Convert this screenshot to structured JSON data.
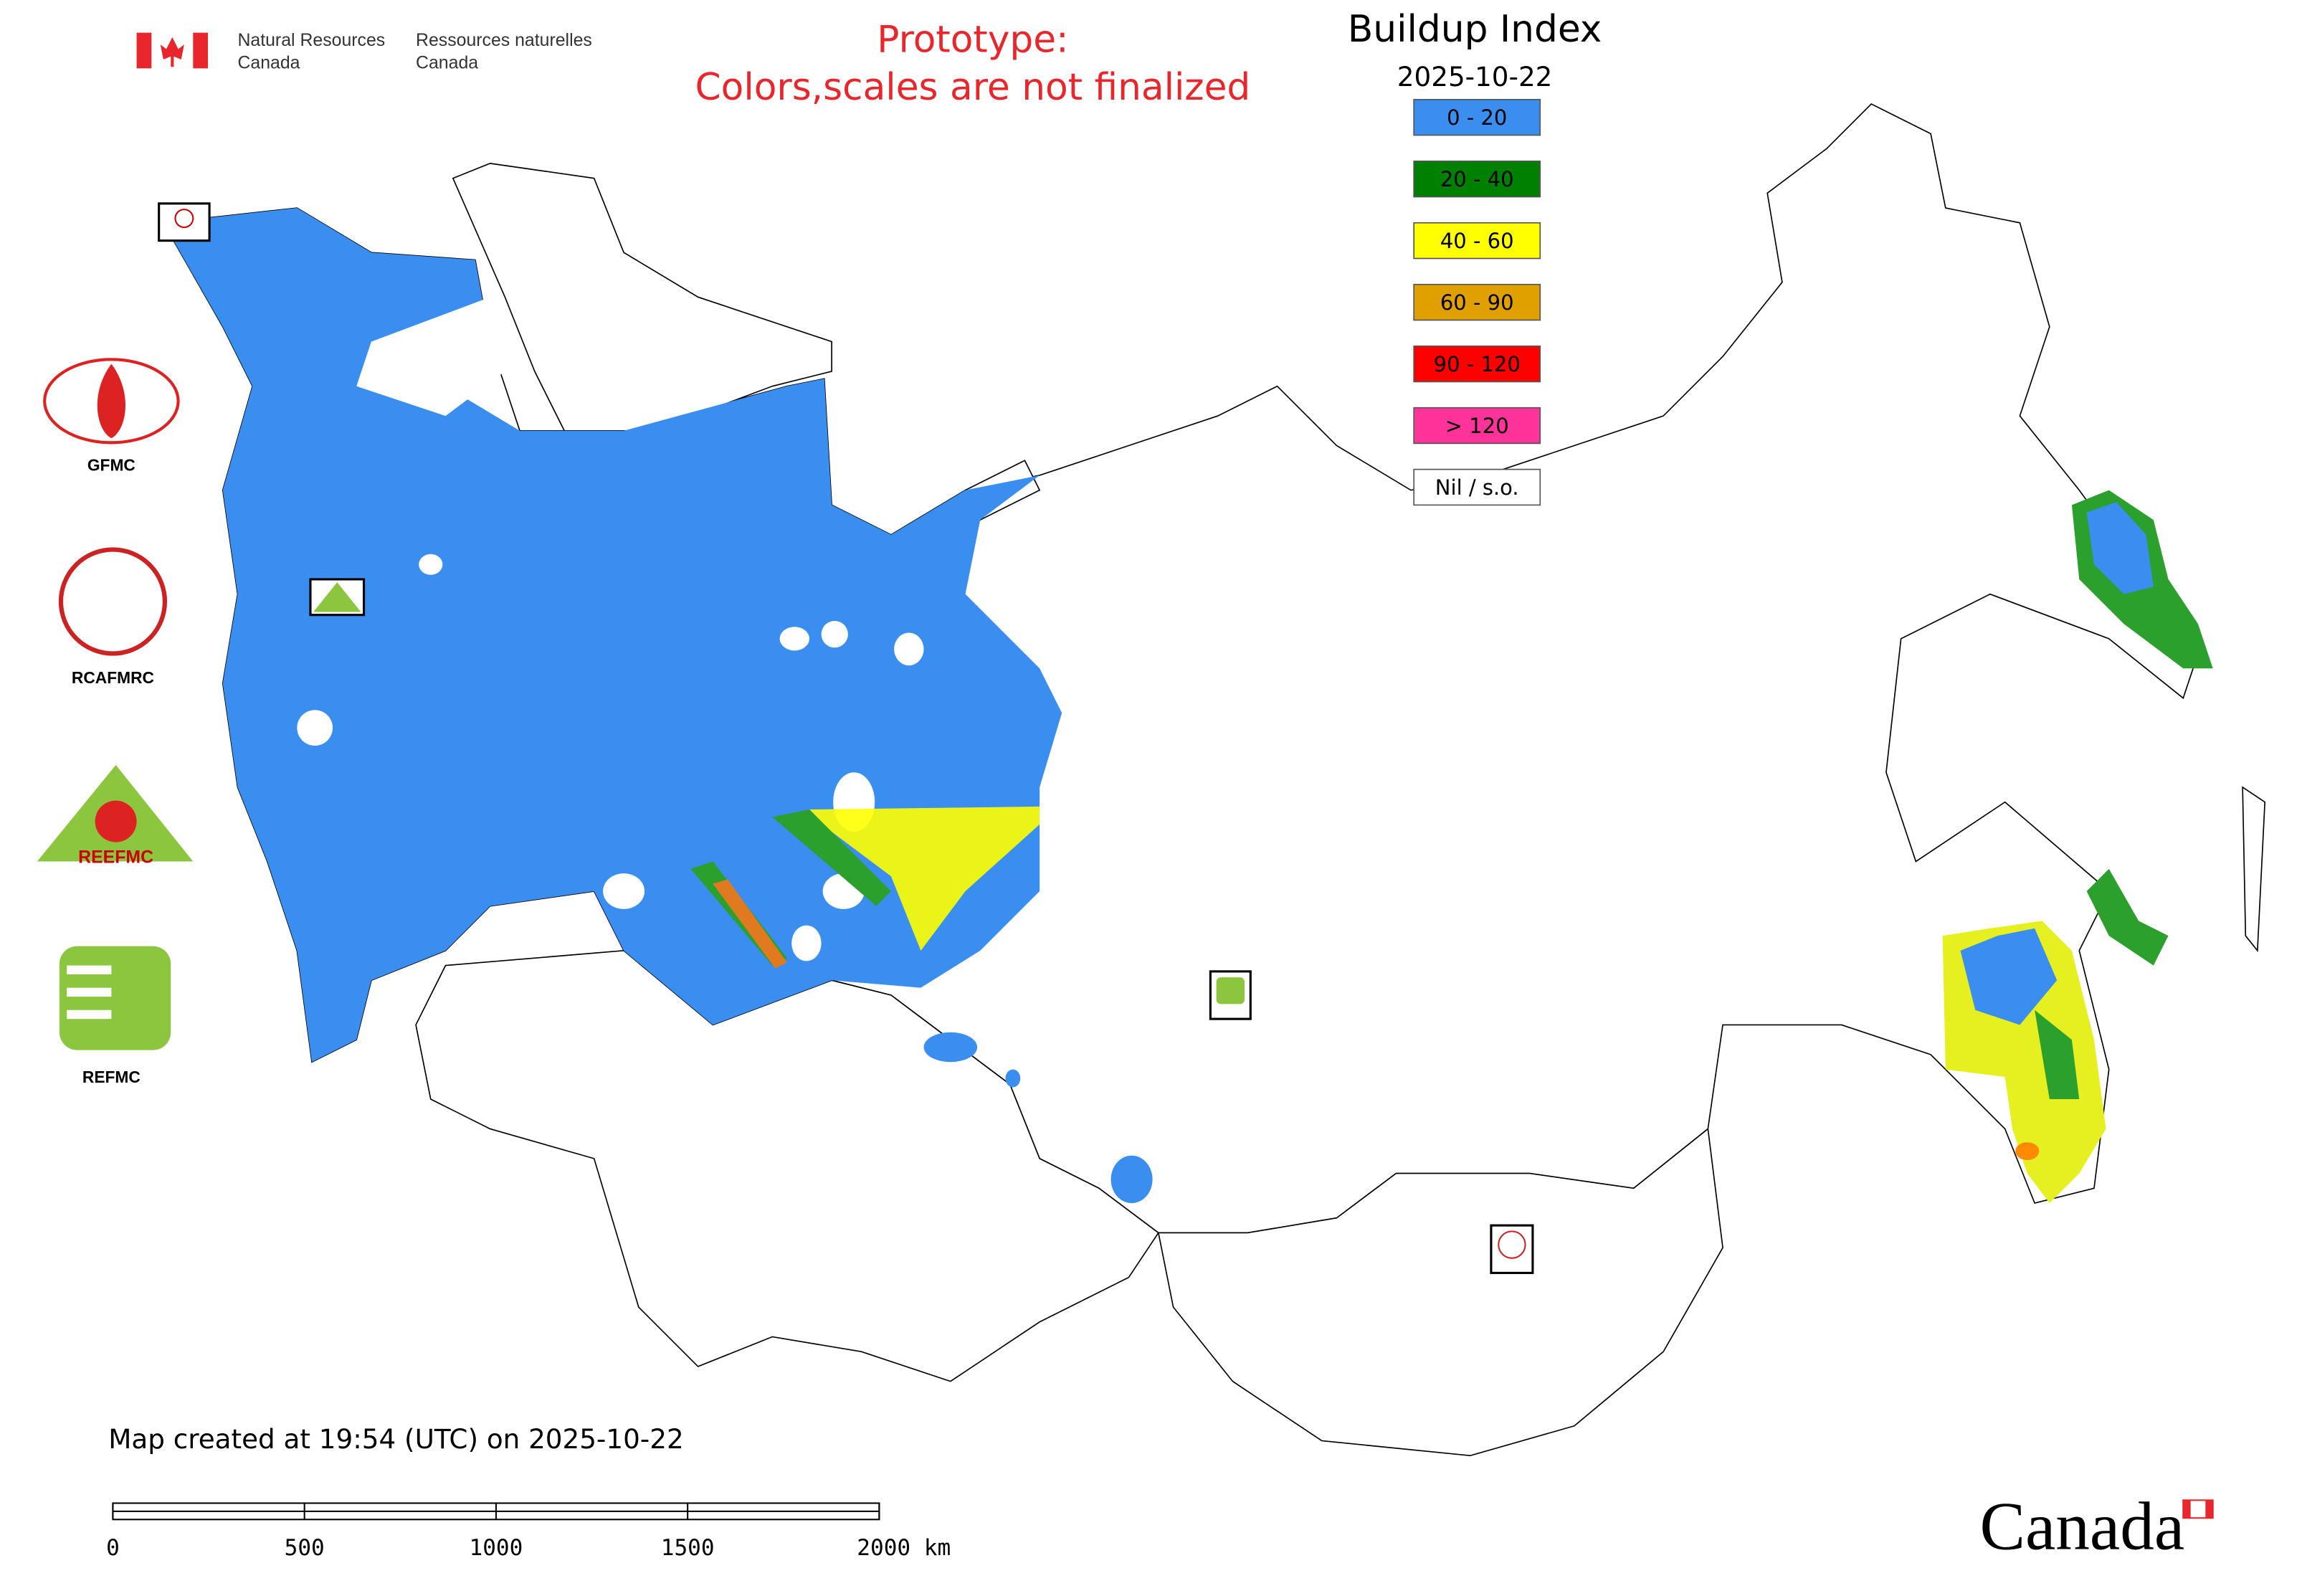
{
  "header": {
    "agency_en": [
      "Natural Resources",
      "Canada"
    ],
    "agency_fr": [
      "Ressources naturelles",
      "Canada"
    ],
    "notice": [
      "Prototype:",
      "Colors,scales are not finalized"
    ]
  },
  "legend": {
    "title": "Buildup Index",
    "date": "2025-10-22",
    "classes": [
      {
        "label": "0 - 20",
        "color": "#3a8ef0"
      },
      {
        "label": "20 - 40",
        "color": "#008000"
      },
      {
        "label": "40 - 60",
        "color": "#ffff00"
      },
      {
        "label": "60 - 90",
        "color": "#e0a000"
      },
      {
        "label": "90 - 120",
        "color": "#ff0000"
      },
      {
        "label": "> 120",
        "color": "#ff3399"
      },
      {
        "label": "Nil / s.o.",
        "color": "#ffffff"
      }
    ]
  },
  "logos": {
    "gfmc": "GFMC",
    "rcafmrc": "RCAFMRC",
    "reefmc": "REEFMC",
    "refmc": "REFMC"
  },
  "footer": {
    "created": "Map created at 19:54 (UTC) on 2025-10-22",
    "scale_ticks": [
      "0",
      "500",
      "1000",
      "1500",
      "2000 km"
    ],
    "wordmark": "Canada"
  }
}
